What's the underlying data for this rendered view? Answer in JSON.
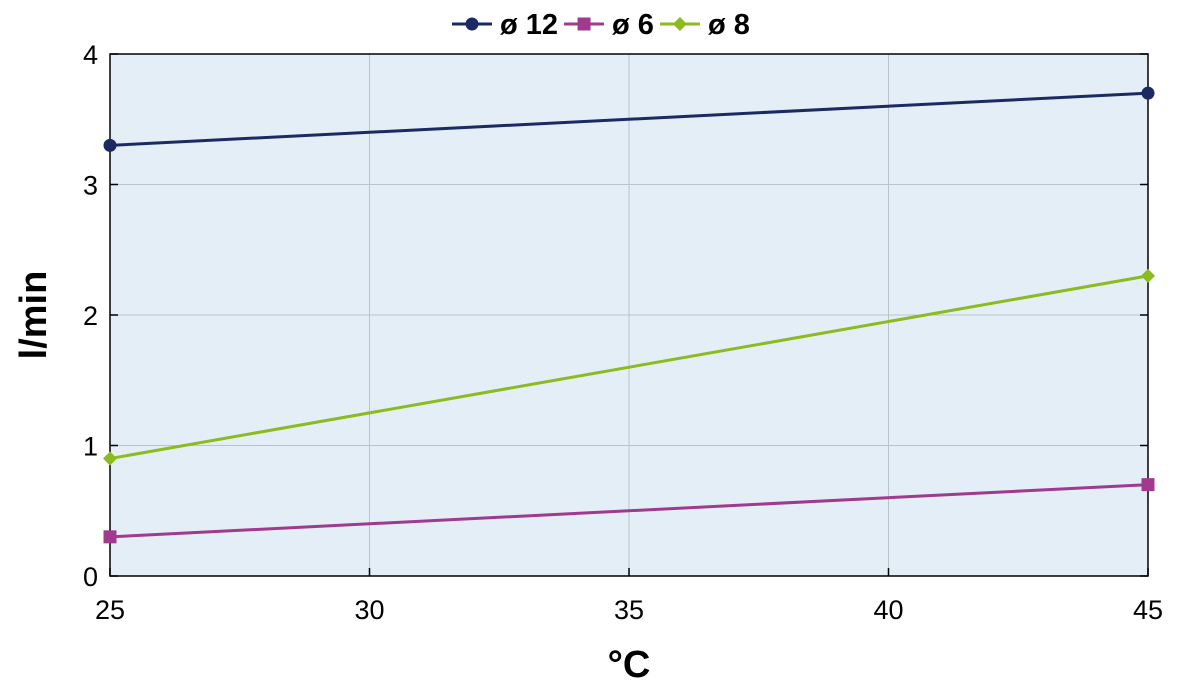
{
  "chart_data": {
    "type": "line",
    "xlabel": "°C",
    "ylabel": "l/min",
    "xlim": [
      25,
      45
    ],
    "ylim": [
      0,
      4
    ],
    "xticks": [
      25,
      30,
      35,
      40,
      45
    ],
    "yticks": [
      0,
      1,
      2,
      3,
      4
    ],
    "xtick_labels": [
      "25",
      "30",
      "35",
      "40",
      "45"
    ],
    "ytick_labels": [
      "0",
      "1",
      "2",
      "3",
      "4"
    ],
    "grid": true,
    "legend_position": "top-center",
    "plot_background": "#e4eef6",
    "grid_color": "#b8c4cc",
    "series": [
      {
        "name": "ø 12",
        "color": "#1b2a63",
        "marker": "circle",
        "x": [
          25,
          45
        ],
        "y": [
          3.3,
          3.7
        ]
      },
      {
        "name": "ø 6",
        "color": "#a03a8e",
        "marker": "square",
        "x": [
          25,
          45
        ],
        "y": [
          0.3,
          0.7
        ]
      },
      {
        "name": "ø 8",
        "color": "#8bbb1f",
        "marker": "diamond",
        "x": [
          25,
          45
        ],
        "y": [
          0.9,
          2.3
        ]
      }
    ]
  }
}
